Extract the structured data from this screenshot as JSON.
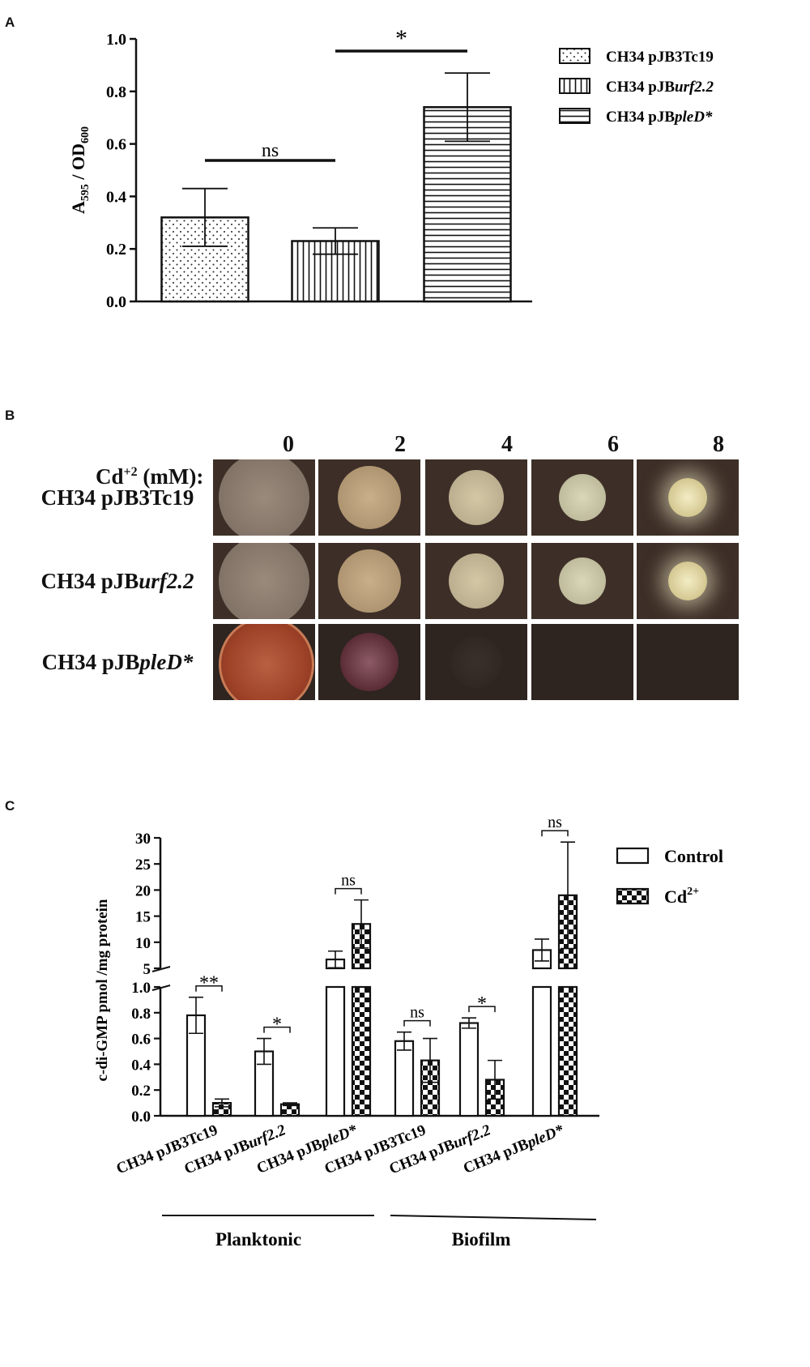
{
  "panels": {
    "a": "A",
    "b": "B",
    "c": "C"
  },
  "colors": {
    "ink": "#111111",
    "plate_bg": "#3a2a22",
    "colony_pale": "#b9a98a",
    "colony_red": "#a4462a"
  },
  "chart_a": {
    "type": "bar",
    "ylabel": "A595 / OD600",
    "ylabel_main": "A",
    "ylabel_sub1": "595",
    "ylabel_mid": " / OD",
    "ylabel_sub2": "600",
    "ylim": [
      0,
      1.0
    ],
    "yticks": [
      "0.0",
      "0.2",
      "0.4",
      "0.6",
      "0.8",
      "1.0"
    ],
    "bars": [
      {
        "name": "CH34 pJB3Tc19",
        "value": 0.32,
        "err": 0.11,
        "pattern": "dots"
      },
      {
        "name": "CH34 pJBurf2.2",
        "value": 0.23,
        "err": 0.05,
        "pattern": "vertical"
      },
      {
        "name": "CH34 pJBpleD*",
        "value": 0.74,
        "err": 0.13,
        "pattern": "horizontal"
      }
    ],
    "legend": [
      {
        "prefix": "CH34 pJB",
        "rest": "3Tc19",
        "italic_rest": false
      },
      {
        "prefix": "CH34 pJB",
        "rest": "urf2.2",
        "italic_rest": true
      },
      {
        "prefix": "CH34 pJB",
        "rest": "pleD*",
        "italic_rest": true
      }
    ],
    "sig": [
      {
        "label": "ns",
        "from": 0,
        "to": 1
      },
      {
        "label": "*",
        "from": 1,
        "to": 2
      }
    ]
  },
  "panel_b": {
    "cd_label": "Cd+2 (mM):",
    "cd_main": "Cd",
    "cd_sup": "+2",
    "cd_unit": " (mM):",
    "concentrations": [
      "0",
      "2",
      "4",
      "6",
      "8"
    ],
    "rows": [
      {
        "prefix": "CH34 pJB",
        "rest": "3Tc19",
        "italic_rest": false
      },
      {
        "prefix": "CH34 pJB",
        "rest": "urf2.2",
        "italic_rest": true
      },
      {
        "prefix": "CH34 pJB",
        "rest": "pleD*",
        "italic_rest": true
      }
    ]
  },
  "chart_c": {
    "type": "bar",
    "ylabel": "c-di-GMP pmol /mg protein",
    "yticks_low": [
      "0.0",
      "0.2",
      "0.4",
      "0.6",
      "0.8",
      "1.0"
    ],
    "yticks_high": [
      "5",
      "10",
      "15",
      "20",
      "25",
      "30"
    ],
    "categories": [
      {
        "prefix": "CH34 pJB",
        "rest": "3Tc19",
        "italic_rest": false
      },
      {
        "prefix": "CH34 pJB",
        "rest": "urf2.2",
        "italic_rest": true
      },
      {
        "prefix": "CH34 pJB",
        "rest": "pleD*",
        "italic_rest": true
      },
      {
        "prefix": "CH34 pJB",
        "rest": "3Tc19",
        "italic_rest": false
      },
      {
        "prefix": "CH34 pJB",
        "rest": "urf2.2",
        "italic_rest": true
      },
      {
        "prefix": "CH34 pJB",
        "rest": "pleD*",
        "italic_rest": true
      }
    ],
    "series": [
      {
        "name": "Control",
        "values": [
          0.78,
          0.5,
          6.7,
          0.58,
          0.72,
          8.5
        ],
        "errors": [
          0.14,
          0.1,
          1.6,
          0.07,
          0.04,
          2.1
        ]
      },
      {
        "name": "Cd2+",
        "values": [
          0.1,
          0.09,
          13.5,
          0.43,
          0.28,
          19.0
        ],
        "errors": [
          0.03,
          0.01,
          4.6,
          0.17,
          0.15,
          10.2
        ]
      }
    ],
    "legend": [
      {
        "main": "Control",
        "sup": ""
      },
      {
        "main": "Cd",
        "sup": "2+"
      }
    ],
    "groups": [
      "Planktonic",
      "Biofilm"
    ],
    "sig": [
      "**",
      "*",
      "ns",
      "ns",
      "*",
      "ns"
    ]
  }
}
